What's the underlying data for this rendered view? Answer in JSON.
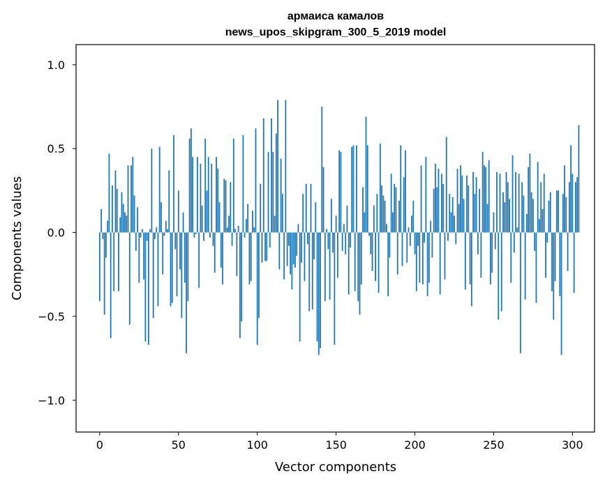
{
  "chart_data": {
    "type": "bar",
    "title": "армаиса камалов",
    "subtitle": "news_upos_skipgram_300_5_2019 model",
    "xlabel": "Vector components",
    "ylabel": "Components values",
    "xlim": [
      -15,
      314
    ],
    "ylim": [
      -1.19,
      1.12
    ],
    "xticks": [
      0,
      50,
      100,
      150,
      200,
      250,
      300
    ],
    "yticks": [
      1.0,
      0.5,
      0.0,
      -0.5,
      -1.0
    ],
    "ytick_labels": [
      "1.0",
      "0.5",
      "0.0",
      "−0.5",
      "−1.0"
    ],
    "bar_color": "#1f77b4",
    "values": [
      -0.41,
      0.14,
      -0.04,
      -0.49,
      -0.15,
      0.07,
      0.47,
      -0.63,
      0.28,
      -0.35,
      0.37,
      0.26,
      -0.35,
      0.09,
      0.24,
      0.17,
      0.12,
      0.1,
      0.4,
      -0.55,
      0.4,
      0.45,
      0.22,
      -0.11,
      0.15,
      -0.3,
      -0.03,
      0.02,
      -0.28,
      -0.65,
      -0.05,
      -0.67,
      0.02,
      0.5,
      -0.51,
      -0.04,
      0.03,
      -0.44,
      0.51,
      0.18,
      -0.25,
      -0.02,
      0.07,
      0.02,
      0.37,
      -0.44,
      -0.42,
      0.58,
      -0.1,
      -0.38,
      0.25,
      -0.22,
      -0.51,
      0.12,
      -0.3,
      -0.72,
      -0.41,
      0.56,
      0.62,
      0.45,
      -0.03,
      -0.01,
      0.45,
      -0.33,
      0.41,
      0.16,
      -0.05,
      0.56,
      0.25,
      0.45,
      -0.03,
      0.41,
      -0.08,
      -0.24,
      0.45,
      0.38,
      0.18,
      -0.21,
      -0.31,
      0.32,
      0.31,
      0.03,
      0.1,
      0.3,
      -0.08,
      0.56,
      0.02,
      -0.26,
      0.04,
      -0.63,
      -0.53,
      0.58,
      -0.03,
      0.08,
      0.17,
      -0.31,
      -0.29,
      0.13,
      0.03,
      0.62,
      -0.67,
      -0.51,
      0.29,
      -0.18,
      0.68,
      -0.17,
      -0.17,
      0.48,
      -0.09,
      0.68,
      0.48,
      0.1,
      0.59,
      0.79,
      -0.22,
      0.44,
      0.23,
      -0.28,
      0.79,
      -0.2,
      -0.08,
      -0.25,
      -0.34,
      -0.19,
      -0.21,
      -0.14,
      0.05,
      -0.65,
      -0.18,
      0.23,
      -0.29,
      0.29,
      -0.07,
      -0.47,
      0.29,
      -0.46,
      -0.16,
      0.18,
      -0.65,
      -0.73,
      -0.69,
      0.75,
      0.39,
      -0.41,
      0.02,
      -0.1,
      -0.4,
      0.2,
      -0.12,
      -0.67,
      0.1,
      -0.27,
      0.49,
      0.48,
      -0.11,
      0.05,
      -0.13,
      0.16,
      -0.37,
      -0.09,
      0.51,
      0.52,
      -0.35,
      0.52,
      -0.41,
      -0.49,
      -0.31,
      0.27,
      0.12,
      0.69,
      0.52,
      -0.02,
      -0.13,
      -0.23,
      0.16,
      -0.29,
      0.23,
      -0.36,
      0.53,
      0.28,
      0.22,
      0.19,
      0.05,
      -0.38,
      -0.15,
      0.35,
      0.12,
      0.29,
      0.27,
      -0.25,
      0.19,
      0.52,
      -0.2,
      0.33,
      0.49,
      -0.18,
      0.03,
      -0.08,
      0.1,
      0.19,
      -0.13,
      -0.35,
      -0.08,
      -0.3,
      0.4,
      -0.31,
      -0.06,
      0.45,
      -0.38,
      -0.3,
      0.07,
      -0.15,
      0.26,
      0.41,
      0.27,
      0.38,
      -0.37,
      0.35,
      0.29,
      -0.28,
      0.57,
      -0.05,
      0.23,
      0.12,
      0.21,
      0.1,
      -0.07,
      0.38,
      0.17,
      0.4,
      0.34,
      0.2,
      -0.34,
      0.34,
      0.28,
      -0.31,
      -0.44,
      0.36,
      0.23,
      0.33,
      -0.13,
      0.26,
      -0.27,
      0.48,
      0.4,
      0.39,
      0.17,
      0.43,
      -0.31,
      -0.24,
      0.12,
      -0.1,
      0.36,
      -0.52,
      0.35,
      -0.47,
      0.24,
      0.18,
      0.36,
      0.3,
      0.2,
      -0.3,
      0.46,
      -0.12,
      0.36,
      0.03,
      0.35,
      -0.72,
      0.3,
      0.22,
      -0.4,
      0.11,
      0.39,
      0.47,
      0.24,
      0.2,
      -0.11,
      -0.42,
      0.42,
      0.08,
      0.3,
      0.14,
      0.35,
      -0.27,
      -0.06,
      0.19,
      0.24,
      -0.35,
      -0.52,
      -0.29,
      0.25,
      0.25,
      -0.38,
      -0.73,
      0.23,
      0.4,
      0.21,
      -0.23,
      0.3,
      0.52,
      0.35,
      -0.36,
      0.3,
      0.33,
      0.64
    ]
  }
}
